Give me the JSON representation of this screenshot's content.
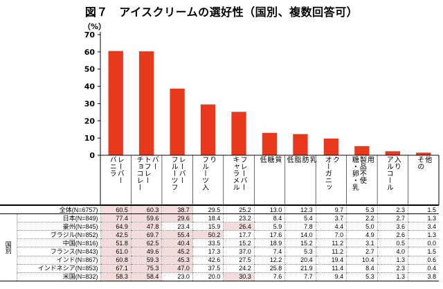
{
  "chart_data": {
    "type": "bar",
    "title": "図７　アイスクリームの選好性（国別、複数回答可）",
    "ylabel": "（%）",
    "ylim": [
      0,
      70
    ],
    "yticks": [
      0,
      10,
      20,
      30,
      40,
      50,
      60,
      70
    ],
    "bar_color": "#e8391d",
    "highlight_color": "#f4dcdc",
    "categories": [
      [
        "バニラ",
        "レーバー"
      ],
      [
        "チョコレー",
        "トフレー",
        "バー"
      ],
      [
        "フルーツフ",
        "レーバー"
      ],
      [
        "フルーツ入",
        "り"
      ],
      [
        "キャラメル",
        "フレーバー"
      ],
      [
        "低",
        "糖",
        "質"
      ],
      [
        "低",
        "脂",
        "肪",
        "乳"
      ],
      [
        "オーガニッ",
        "ク"
      ],
      [
        "糖・卵・乳",
        "製品不使",
        "用"
      ],
      [
        "アルコール",
        "入り"
      ],
      [
        "その",
        "他"
      ]
    ],
    "values": [
      60.5,
      60.3,
      38.7,
      29.5,
      25.2,
      13.0,
      12.3,
      9.7,
      5.3,
      2.3,
      1.5
    ],
    "table": {
      "group_label": "国別",
      "total_row": {
        "label": "全体(N=6757)",
        "values": [
          60.5,
          60.3,
          38.7,
          29.5,
          25.2,
          13.0,
          12.3,
          9.7,
          5.3,
          2.3,
          1.5
        ],
        "highlight": [
          true,
          true,
          true,
          false,
          false,
          false,
          false,
          false,
          false,
          false,
          false
        ]
      },
      "rows": [
        {
          "label": "日本(N=849)",
          "values": [
            77.4,
            59.6,
            29.6,
            18.4,
            23.2,
            8.4,
            5.4,
            3.7,
            2.2,
            2.7,
            1.3
          ],
          "highlight": [
            true,
            true,
            true,
            false,
            false,
            false,
            false,
            false,
            false,
            false,
            false
          ]
        },
        {
          "label": "豪州(N=845)",
          "values": [
            64.9,
            47.8,
            23.4,
            15.9,
            26.4,
            5.9,
            7.8,
            4.4,
            5.0,
            3.6,
            3.4
          ],
          "highlight": [
            true,
            true,
            false,
            false,
            true,
            false,
            false,
            false,
            false,
            false,
            false
          ]
        },
        {
          "label": "ブラジル(N=852)",
          "values": [
            42.5,
            69.7,
            55.4,
            50.2,
            17.7,
            17.6,
            14.0,
            7.0,
            4.9,
            2.6,
            1.3
          ],
          "highlight": [
            true,
            true,
            true,
            true,
            false,
            false,
            false,
            false,
            false,
            false,
            false
          ]
        },
        {
          "label": "中国(N=816)",
          "values": [
            51.8,
            62.5,
            40.4,
            33.5,
            15.2,
            18.9,
            15.2,
            11.2,
            3.1,
            0.5,
            0.0
          ],
          "highlight": [
            true,
            true,
            true,
            false,
            false,
            false,
            false,
            false,
            false,
            false,
            false
          ]
        },
        {
          "label": "フランス(N=843)",
          "values": [
            61.0,
            49.6,
            45.2,
            17.3,
            37.0,
            7.4,
            5.3,
            11.2,
            2.7,
            4.0,
            1.5
          ],
          "highlight": [
            true,
            true,
            true,
            false,
            false,
            false,
            false,
            false,
            false,
            false,
            false
          ]
        },
        {
          "label": "インド(N=867)",
          "values": [
            60.8,
            59.3,
            45.3,
            42.6,
            27.5,
            12.2,
            20.4,
            19.4,
            10.4,
            1.3,
            0.6
          ],
          "highlight": [
            true,
            true,
            true,
            false,
            false,
            false,
            false,
            false,
            false,
            false,
            false
          ]
        },
        {
          "label": "インドネシア(N=853)",
          "values": [
            67.1,
            75.3,
            47.0,
            37.5,
            24.2,
            25.8,
            21.9,
            11.4,
            8.4,
            2.3,
            0.4
          ],
          "highlight": [
            true,
            true,
            true,
            false,
            false,
            false,
            false,
            false,
            false,
            false,
            false
          ]
        },
        {
          "label": "米国(N=832)",
          "values": [
            58.3,
            58.4,
            23.0,
            20.0,
            30.3,
            7.6,
            7.7,
            9.4,
            5.3,
            1.3,
            3.8
          ],
          "highlight": [
            true,
            true,
            false,
            false,
            true,
            false,
            false,
            false,
            false,
            false,
            false
          ]
        }
      ]
    }
  }
}
